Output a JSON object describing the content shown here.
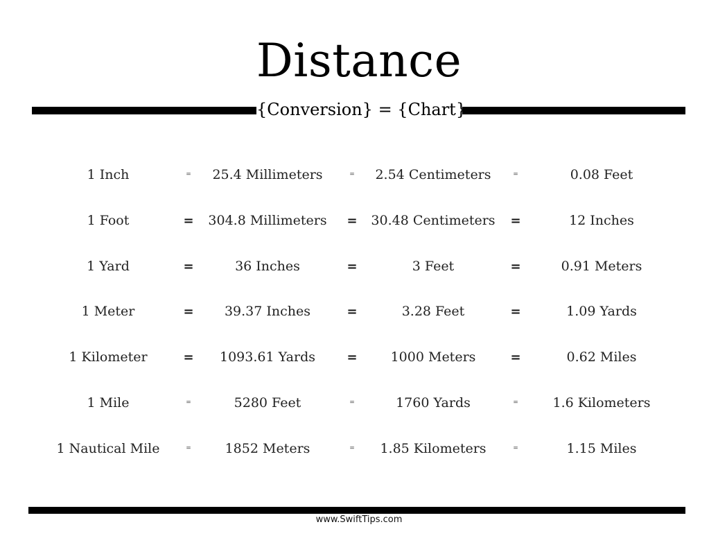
{
  "header": {
    "title": "Distance",
    "subtitle": "{Conversion} = {Chart}"
  },
  "rows": [
    {
      "unit": "1 Inch",
      "eq1": "=",
      "v1": "25.4 Millimeters",
      "eq2": "=",
      "v2": "2.54 Centimeters",
      "eq3": "=",
      "v3": "0.08 Feet"
    },
    {
      "unit": "1 Foot",
      "eq1": "=",
      "v1": "304.8 Millimeters",
      "eq2": "=",
      "v2": "30.48 Centimeters",
      "eq3": "=",
      "v3": "12 Inches"
    },
    {
      "unit": "1 Yard",
      "eq1": "=",
      "v1": "36 Inches",
      "eq2": "=",
      "v2": "3 Feet",
      "eq3": "=",
      "v3": "0.91 Meters"
    },
    {
      "unit": "1 Meter",
      "eq1": "=",
      "v1": "39.37 Inches",
      "eq2": "=",
      "v2": "3.28 Feet",
      "eq3": "=",
      "v3": "1.09 Yards"
    },
    {
      "unit": "1 Kilometer",
      "eq1": "=",
      "v1": "1093.61 Yards",
      "eq2": "=",
      "v2": "1000 Meters",
      "eq3": "=",
      "v3": "0.62 Miles"
    },
    {
      "unit": "1 Mile",
      "eq1": "=",
      "v1": "5280 Feet",
      "eq2": "=",
      "v2": "1760 Yards",
      "eq3": "=",
      "v3": "1.6 Kilometers"
    },
    {
      "unit": "1 Nautical Mile",
      "eq1": "=",
      "v1": "1852 Meters",
      "eq2": "=",
      "v2": "1.85 Kilometers",
      "eq3": "=",
      "v3": "1.15 Miles"
    }
  ],
  "footer": {
    "website": "www.SwiftTips.com"
  }
}
